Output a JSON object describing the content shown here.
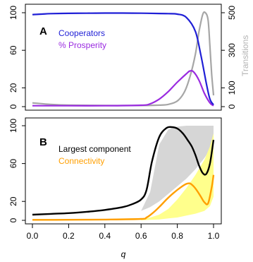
{
  "chart_data": [
    {
      "type": "line",
      "panel_label": "A",
      "xlim": [
        0,
        1
      ],
      "ylim": [
        0,
        100
      ],
      "y2lim": [
        0,
        500
      ],
      "yticks": [
        "0",
        "20",
        "60",
        "100"
      ],
      "yticks_values": [
        0,
        20,
        60,
        100
      ],
      "y2ticks": [
        "0",
        "100",
        "300",
        "500"
      ],
      "y2ticks_values": [
        0,
        100,
        300,
        500
      ],
      "y2label": "Transitions",
      "legend": [
        "Cooperators",
        "% Prosperity"
      ],
      "legend_placement": "top-left",
      "series": [
        {
          "name": "Cooperators",
          "color": "#1f1fd6",
          "axis": "left",
          "x": [
            0.0,
            0.05,
            0.1,
            0.2,
            0.3,
            0.4,
            0.5,
            0.6,
            0.7,
            0.75,
            0.8,
            0.85,
            0.9,
            0.93,
            0.96,
            0.98,
            1.0
          ],
          "y": [
            98,
            98.5,
            99,
            99.3,
            99.5,
            99.6,
            99.6,
            99.5,
            99.2,
            99,
            98.5,
            95,
            80,
            55,
            25,
            8,
            2
          ]
        },
        {
          "name": "% Prosperity",
          "color": "#9a2be0",
          "axis": "left",
          "x": [
            0.0,
            0.2,
            0.4,
            0.6,
            0.65,
            0.7,
            0.75,
            0.8,
            0.85,
            0.87,
            0.89,
            0.92,
            0.95,
            0.98,
            1.0
          ],
          "y": [
            1,
            1,
            1,
            1.5,
            3,
            8,
            16,
            26,
            35,
            38,
            37,
            28,
            14,
            4,
            1
          ]
        },
        {
          "name": "",
          "color": "#a6a6a6",
          "axis": "right",
          "x": [
            0.0,
            0.1,
            0.2,
            0.4,
            0.6,
            0.7,
            0.75,
            0.8,
            0.84,
            0.87,
            0.9,
            0.92,
            0.94,
            0.955,
            0.97,
            0.98,
            0.99,
            1.0
          ],
          "y": [
            20,
            12,
            8,
            6,
            6,
            8,
            12,
            30,
            80,
            160,
            280,
            400,
            490,
            500,
            460,
            320,
            170,
            60
          ]
        }
      ]
    },
    {
      "type": "line",
      "panel_label": "B",
      "xlim": [
        0,
        1
      ],
      "ylim": [
        0,
        100
      ],
      "xlabel": "q",
      "xticks": [
        "0.0",
        "0.2",
        "0.4",
        "0.6",
        "0.8",
        "1.0"
      ],
      "xticks_values": [
        0,
        0.2,
        0.4,
        0.6,
        0.8,
        1.0
      ],
      "yticks": [
        "0",
        "20",
        "60",
        "100"
      ],
      "yticks_values": [
        0,
        20,
        60,
        100
      ],
      "legend": [
        "Largest component",
        "Connectivity"
      ],
      "legend_placement": "top-left",
      "bands": [
        {
          "color": "#d6d6d6",
          "x": [
            0.6,
            0.65,
            0.7,
            0.75,
            0.8,
            0.85,
            0.9,
            0.95,
            1.0
          ],
          "lower": [
            10,
            14,
            20,
            28,
            36,
            44,
            54,
            66,
            80
          ],
          "upper": [
            10,
            30,
            80,
            96,
            99,
            100,
            100,
            100,
            100
          ]
        },
        {
          "color": "#ffff8c",
          "x": [
            0.6,
            0.65,
            0.7,
            0.75,
            0.8,
            0.85,
            0.9,
            0.95,
            0.98,
            1.0
          ],
          "lower": [
            0,
            0.5,
            1,
            2,
            3,
            5,
            7,
            10,
            15,
            25
          ],
          "upper": [
            1,
            3,
            6,
            12,
            22,
            34,
            48,
            64,
            78,
            92
          ]
        }
      ],
      "series": [
        {
          "name": "Largest component",
          "color": "#000000",
          "x": [
            0.0,
            0.1,
            0.2,
            0.3,
            0.4,
            0.5,
            0.55,
            0.6,
            0.63,
            0.66,
            0.7,
            0.74,
            0.77,
            0.8,
            0.83,
            0.86,
            0.88,
            0.9,
            0.92,
            0.94,
            0.96,
            0.98,
            1.0
          ],
          "y": [
            6,
            6.8,
            7.6,
            9,
            11,
            14,
            17,
            22,
            32,
            62,
            88,
            97.5,
            98.5,
            97,
            92,
            84,
            78,
            69,
            58,
            50,
            49,
            60,
            85
          ]
        },
        {
          "name": "Connectivity",
          "color": "#ff9f00",
          "x": [
            0.0,
            0.2,
            0.4,
            0.6,
            0.63,
            0.66,
            0.7,
            0.74,
            0.78,
            0.82,
            0.85,
            0.87,
            0.89,
            0.91,
            0.93,
            0.95,
            0.97,
            0.99,
            1.0
          ],
          "y": [
            0.5,
            0.6,
            0.8,
            1.5,
            3,
            7,
            14,
            22,
            29,
            35,
            38.5,
            39,
            36,
            31,
            25,
            19,
            18,
            35,
            48
          ]
        }
      ]
    }
  ]
}
